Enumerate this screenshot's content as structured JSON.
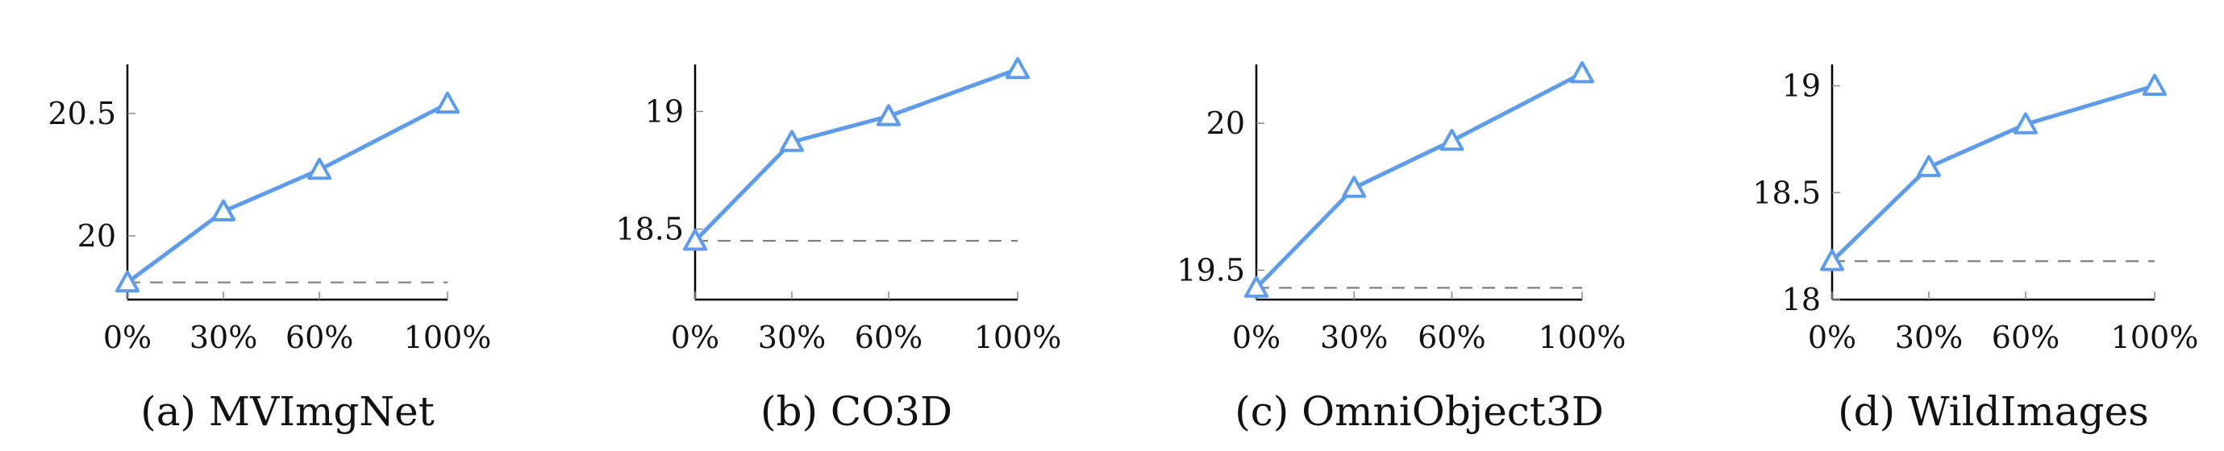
{
  "colors": {
    "series": "#5e9ceb",
    "axis": "#000000",
    "baseline": "#808080"
  },
  "chart_data": [
    {
      "type": "line",
      "caption": "(a) MVImgNet",
      "x": [
        0,
        30,
        60,
        100
      ],
      "x_tick_labels": [
        "0%",
        "30%",
        "60%",
        "100%"
      ],
      "values": [
        19.81,
        20.1,
        20.27,
        20.54
      ],
      "baseline": 19.81,
      "ylim": [
        19.74,
        20.7
      ],
      "y_ticks": [
        20,
        20.5
      ],
      "y_tick_labels": [
        "20",
        "20.5"
      ],
      "marker": "triangle"
    },
    {
      "type": "line",
      "caption": "(b) CO3D",
      "x": [
        0,
        30,
        60,
        100
      ],
      "x_tick_labels": [
        "0%",
        "30%",
        "60%",
        "100%"
      ],
      "values": [
        18.45,
        18.87,
        18.98,
        19.18
      ],
      "baseline": 18.45,
      "ylim": [
        18.2,
        19.2
      ],
      "y_ticks": [
        18.5,
        19
      ],
      "y_tick_labels": [
        "18.5",
        "19"
      ],
      "marker": "triangle"
    },
    {
      "type": "line",
      "caption": "(c) OmniObject3D",
      "x": [
        0,
        30,
        60,
        100
      ],
      "x_tick_labels": [
        "0%",
        "30%",
        "60%",
        "100%"
      ],
      "values": [
        19.44,
        19.78,
        19.94,
        20.17
      ],
      "baseline": 19.44,
      "ylim": [
        19.4,
        20.2
      ],
      "y_ticks": [
        19.5,
        20
      ],
      "y_tick_labels": [
        "19.5",
        "20"
      ],
      "marker": "triangle"
    },
    {
      "type": "line",
      "caption": "(d) WildImages",
      "x": [
        0,
        30,
        60,
        100
      ],
      "x_tick_labels": [
        "0%",
        "30%",
        "60%",
        "100%"
      ],
      "values": [
        18.18,
        18.62,
        18.82,
        19
      ],
      "baseline": 18.18,
      "ylim": [
        18,
        19.1
      ],
      "y_ticks": [
        18,
        18.5,
        19
      ],
      "y_tick_labels": [
        "18",
        "18.5",
        "19"
      ],
      "marker": "triangle"
    }
  ]
}
